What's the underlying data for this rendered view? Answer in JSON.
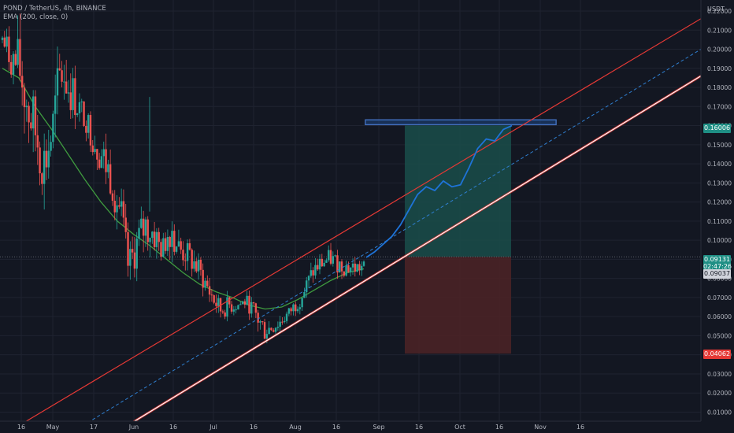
{
  "header": {
    "symbol_line": "POND / TetherUS, 4h, BINANCE",
    "indicator_line": "EMA (200, close, 0)",
    "currency": "USDT"
  },
  "price_labels": {
    "target": "0.16006",
    "current": "0.09131",
    "countdown": "02:47:26",
    "ema": "0.09037",
    "stop": "0.04062"
  },
  "colors": {
    "background": "#131722",
    "grid": "#1f2330",
    "candle_up": "#26a69a",
    "candle_down": "#ef5350",
    "ema": "#3f9b3f",
    "channel_upper": "#e53935",
    "channel_lower": "#ffffff",
    "channel_lower_glow": "#e53935",
    "channel_mid": "#2f7fd0",
    "projection": "#1e73d8",
    "target_zone": "#1a4d4a",
    "stop_zone": "#4a2226",
    "target_box": "#1e4a8a"
  },
  "chart_data": {
    "type": "candlestick",
    "title": "POND / TetherUS, 4h, BINANCE",
    "ylim": [
      0.0,
      0.22
    ],
    "y_ticks": [
      "0.22000",
      "0.21000",
      "0.20000",
      "0.19000",
      "0.18000",
      "0.17000",
      "0.16000",
      "0.15000",
      "0.14000",
      "0.13000",
      "0.12000",
      "0.11000",
      "0.10000",
      "0.09000",
      "0.08000",
      "0.07000",
      "0.06000",
      "0.05000",
      "0.04000",
      "0.03000",
      "0.02000",
      "0.01000"
    ],
    "x_ticks": [
      "16",
      "May",
      "17",
      "Jun",
      "16",
      "Jul",
      "16",
      "Aug",
      "16",
      "Sep",
      "16",
      "Oct",
      "16",
      "Nov",
      "16"
    ],
    "price_path": [
      [
        0.215,
        0.195
      ],
      [
        0.205,
        0.185
      ],
      [
        0.21,
        0.17
      ],
      [
        0.19,
        0.15
      ],
      [
        0.175,
        0.135
      ],
      [
        0.16,
        0.12
      ],
      [
        0.175,
        0.14
      ],
      [
        0.21,
        0.17
      ],
      [
        0.195,
        0.165
      ],
      [
        0.18,
        0.16
      ],
      [
        0.17,
        0.155
      ],
      [
        0.165,
        0.14
      ],
      [
        0.155,
        0.13
      ],
      [
        0.145,
        0.12
      ],
      [
        0.13,
        0.1
      ],
      [
        0.095,
        0.075
      ],
      [
        0.11,
        0.085
      ],
      [
        0.12,
        0.095
      ],
      [
        0.115,
        0.092
      ],
      [
        0.1,
        0.088
      ],
      [
        0.122,
        0.095
      ],
      [
        0.105,
        0.085
      ],
      [
        0.1,
        0.085
      ],
      [
        0.095,
        0.078
      ],
      [
        0.085,
        0.072
      ],
      [
        0.078,
        0.062
      ],
      [
        0.068,
        0.058
      ],
      [
        0.072,
        0.06
      ],
      [
        0.07,
        0.062
      ],
      [
        0.072,
        0.064
      ],
      [
        0.068,
        0.056
      ],
      [
        0.062,
        0.045
      ],
      [
        0.058,
        0.05
      ],
      [
        0.062,
        0.052
      ],
      [
        0.065,
        0.058
      ],
      [
        0.072,
        0.062
      ],
      [
        0.08,
        0.068
      ],
      [
        0.09,
        0.078
      ],
      [
        0.094,
        0.082
      ],
      [
        0.096,
        0.085
      ],
      [
        0.093,
        0.082
      ],
      [
        0.092,
        0.08
      ],
      [
        0.091,
        0.08
      ],
      [
        0.09,
        0.082
      ]
    ],
    "ema_200": [
      0.19,
      0.185,
      0.17,
      0.158,
      0.145,
      0.132,
      0.12,
      0.11,
      0.103,
      0.097,
      0.09,
      0.083,
      0.077,
      0.073,
      0.07,
      0.066,
      0.064,
      0.065,
      0.069,
      0.074,
      0.079,
      0.083,
      0.085
    ],
    "channel": {
      "upper": [
        [
          0.0135,
          0.0
        ],
        [
          1.0,
          0.216
        ]
      ],
      "lower": [
        [
          0.1685,
          0.0
        ],
        [
          1.0,
          0.186
        ]
      ],
      "mid": [
        [
          0.105,
          0.0
        ],
        [
          1.0,
          0.2
        ]
      ]
    },
    "long_position": {
      "entry": 0.09131,
      "target": 0.16006,
      "stop": 0.04062
    },
    "projection_path": [
      0.091,
      0.094,
      0.098,
      0.102,
      0.108,
      0.116,
      0.124,
      0.128,
      0.126,
      0.131,
      0.128,
      0.129,
      0.138,
      0.148,
      0.153,
      0.152,
      0.158,
      0.16
    ]
  }
}
